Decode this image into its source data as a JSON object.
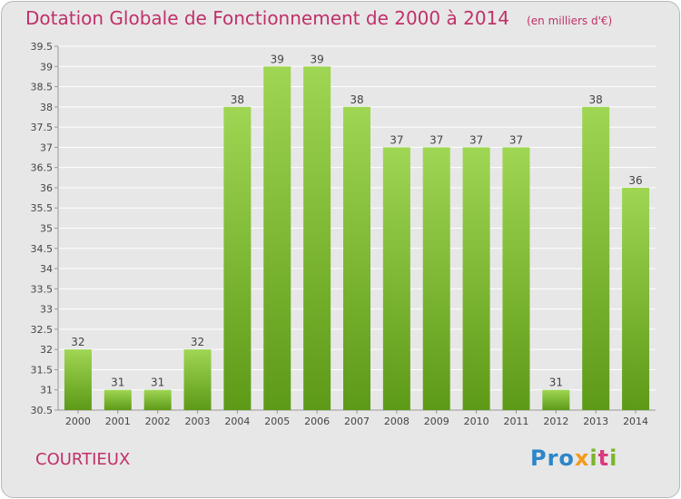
{
  "title": "Dotation Globale de Fonctionnement de 2000 à 2014",
  "subtitle": "(en milliers d'€)",
  "town": "COURTIEUX",
  "logo": {
    "p": "Pro",
    "x": "x",
    "i": "i",
    "t": "t",
    "i2": "i"
  },
  "colors": {
    "title": "#c0306a",
    "bar_light": "#9fd653",
    "bar_dark": "#5d9a17",
    "grid": "#ffffff",
    "background": "#e7e7e7"
  },
  "chart_data": {
    "type": "bar",
    "categories": [
      "2000",
      "2001",
      "2002",
      "2003",
      "2004",
      "2005",
      "2006",
      "2007",
      "2008",
      "2009",
      "2010",
      "2011",
      "2012",
      "2013",
      "2014"
    ],
    "values": [
      32,
      31,
      31,
      32,
      38,
      39,
      39,
      38,
      37,
      37,
      37,
      37,
      31,
      38,
      36
    ],
    "data_labels": [
      "32",
      "31",
      "31",
      "32",
      "38",
      "39",
      "39",
      "38",
      "37",
      "37",
      "37",
      "37",
      "31",
      "38",
      "36"
    ],
    "title": "Dotation Globale de Fonctionnement de 2000 à 2014",
    "ylim": [
      30.5,
      39.5
    ],
    "yticks": [
      30.5,
      31,
      31.5,
      32,
      32.5,
      33,
      33.5,
      34,
      34.5,
      35,
      35.5,
      36,
      36.5,
      37,
      37.5,
      38,
      38.5,
      39,
      39.5
    ],
    "ytick_labels": [
      "30.5",
      "31",
      "31.5",
      "32",
      "32.5",
      "33",
      "33.5",
      "34",
      "34.5",
      "35",
      "35.5",
      "36",
      "36.5",
      "37",
      "37.5",
      "38",
      "38.5",
      "39",
      "39.5"
    ],
    "grid": true,
    "legend": "none"
  }
}
